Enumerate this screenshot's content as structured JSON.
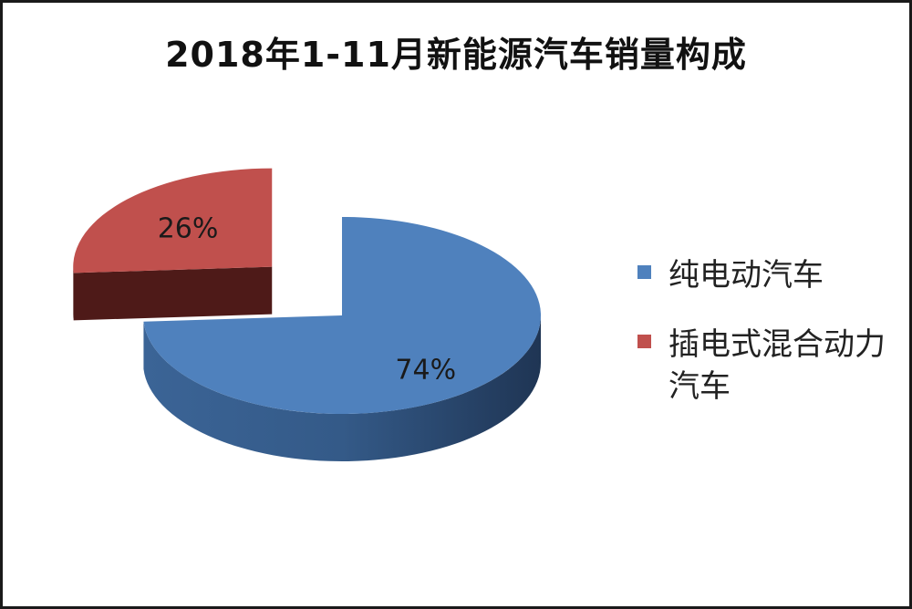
{
  "chart_data": {
    "type": "pie",
    "title": "2018年1-11月新能源汽车销量构成",
    "slices": [
      {
        "name": "纯电动汽车",
        "value": 74,
        "label": "74%",
        "color": "#4f81bd",
        "side_color": "#2c4d75",
        "exploded": false
      },
      {
        "name": "插电式混合动力汽车",
        "value": 26,
        "label": "26%",
        "color": "#c0504d",
        "side_color": "#5a1f1d",
        "exploded": true
      }
    ],
    "legend": {
      "position": "right",
      "items": [
        {
          "label": "纯电动汽车",
          "color": "#4f81bd"
        },
        {
          "label": "插电式混合动力汽车",
          "color": "#c0504d"
        }
      ]
    }
  }
}
